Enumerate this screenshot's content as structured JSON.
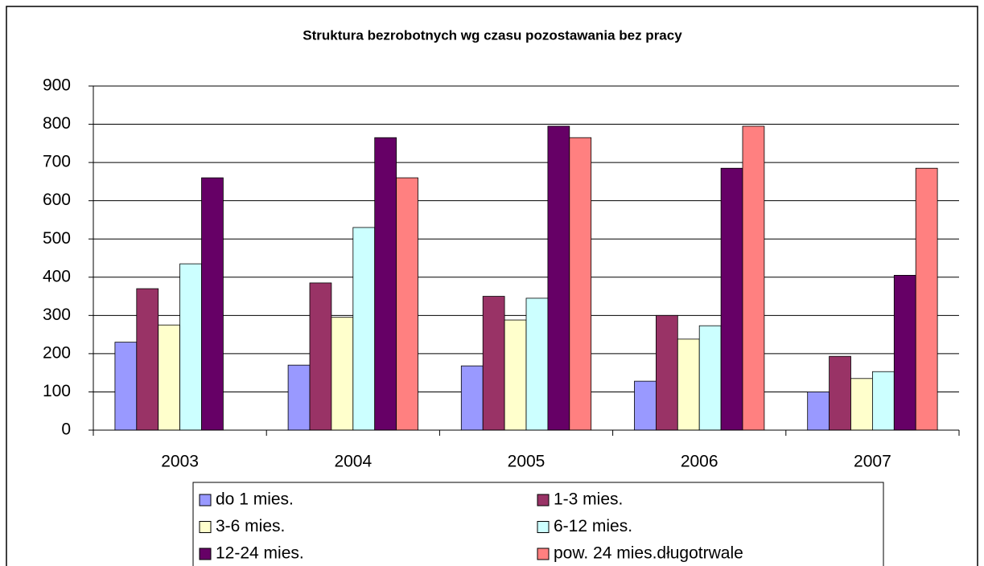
{
  "chart_data": {
    "type": "bar",
    "title": "Struktura bezrobotnych wg czasu pozostawania bez pracy",
    "categories": [
      "2003",
      "2004",
      "2005",
      "2006",
      "2007"
    ],
    "series": [
      {
        "name": "do 1 mies.",
        "color": "#9999ff",
        "values": [
          230,
          170,
          168,
          128,
          100
        ]
      },
      {
        "name": "1-3 mies.",
        "color": "#993366",
        "values": [
          370,
          385,
          350,
          300,
          193
        ]
      },
      {
        "name": "3-6 mies.",
        "color": "#ffffcc",
        "values": [
          275,
          295,
          288,
          238,
          135
        ]
      },
      {
        "name": "6-12 mies.",
        "color": "#ccffff",
        "values": [
          435,
          530,
          345,
          273,
          153
        ]
      },
      {
        "name": "12-24 mies.",
        "color": "#660066",
        "values": [
          660,
          765,
          795,
          685,
          405
        ]
      },
      {
        "name": "pow. 24 mies.długotrwale",
        "color": "#ff8080",
        "values": [
          null,
          660,
          765,
          795,
          685
        ]
      }
    ],
    "ylim": [
      0,
      900
    ],
    "yticks": [
      0,
      100,
      200,
      300,
      400,
      500,
      600,
      700,
      800,
      900
    ],
    "grid": true
  }
}
